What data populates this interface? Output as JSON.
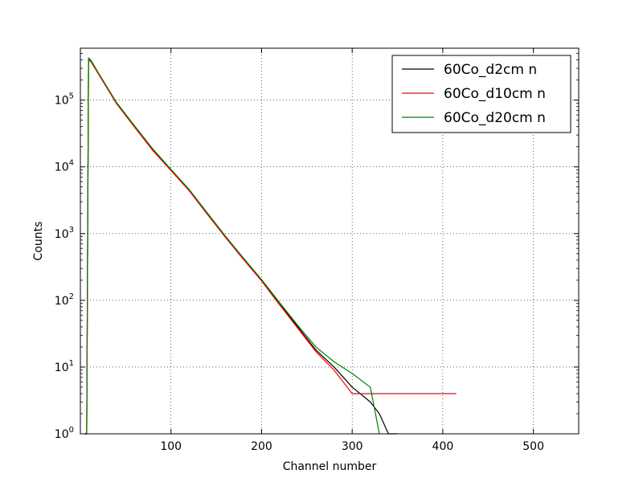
{
  "chart_data": {
    "type": "line",
    "title": "",
    "xlabel": "Channel number",
    "ylabel": "Counts",
    "xlim": [
      0,
      550
    ],
    "ylim": [
      1,
      600000
    ],
    "yscale": "log",
    "grid": true,
    "legend_position": "top-right",
    "x_ticks": [
      100,
      200,
      300,
      400,
      500
    ],
    "x_tick_labels": [
      "100",
      "200",
      "300",
      "400",
      "500"
    ],
    "y_ticks": [
      1,
      10,
      100,
      1000,
      10000,
      100000
    ],
    "y_tick_labels": [
      {
        "base": "10",
        "exp": "0"
      },
      {
        "base": "10",
        "exp": "1"
      },
      {
        "base": "10",
        "exp": "2"
      },
      {
        "base": "10",
        "exp": "3"
      },
      {
        "base": "10",
        "exp": "4"
      },
      {
        "base": "10",
        "exp": "5"
      }
    ],
    "series": [
      {
        "name": "60Co_d2cm n",
        "color": "#000000",
        "x": [
          5,
          7,
          9,
          12,
          20,
          40,
          60,
          80,
          100,
          120,
          140,
          160,
          180,
          200,
          220,
          240,
          260,
          280,
          300,
          320,
          330,
          340,
          350
        ],
        "y": [
          1,
          1,
          420000,
          380000,
          250000,
          90000,
          40000,
          18000,
          9000,
          4500,
          2000,
          900,
          420,
          200,
          90,
          40,
          18,
          10,
          5,
          3,
          2,
          1,
          1
        ]
      },
      {
        "name": "60Co_d10cm n",
        "color": "#ff0000",
        "x": [
          5,
          7,
          9,
          12,
          20,
          40,
          60,
          80,
          100,
          120,
          140,
          160,
          180,
          200,
          220,
          240,
          260,
          280,
          300,
          320,
          340,
          360,
          415
        ],
        "y": [
          1,
          1,
          410000,
          370000,
          245000,
          88000,
          39000,
          17500,
          8800,
          4400,
          1950,
          880,
          410,
          195,
          85,
          38,
          17,
          9,
          4,
          4,
          4,
          4,
          4
        ]
      },
      {
        "name": "60Co_d20cm n",
        "color": "#008000",
        "x": [
          5,
          7,
          9,
          12,
          20,
          40,
          60,
          80,
          100,
          120,
          140,
          160,
          180,
          200,
          220,
          240,
          260,
          280,
          300,
          320,
          330
        ],
        "y": [
          1,
          1,
          430000,
          390000,
          255000,
          92000,
          41000,
          18500,
          9200,
          4600,
          2050,
          920,
          430,
          205,
          92,
          42,
          20,
          12,
          8,
          5,
          1
        ]
      }
    ]
  }
}
